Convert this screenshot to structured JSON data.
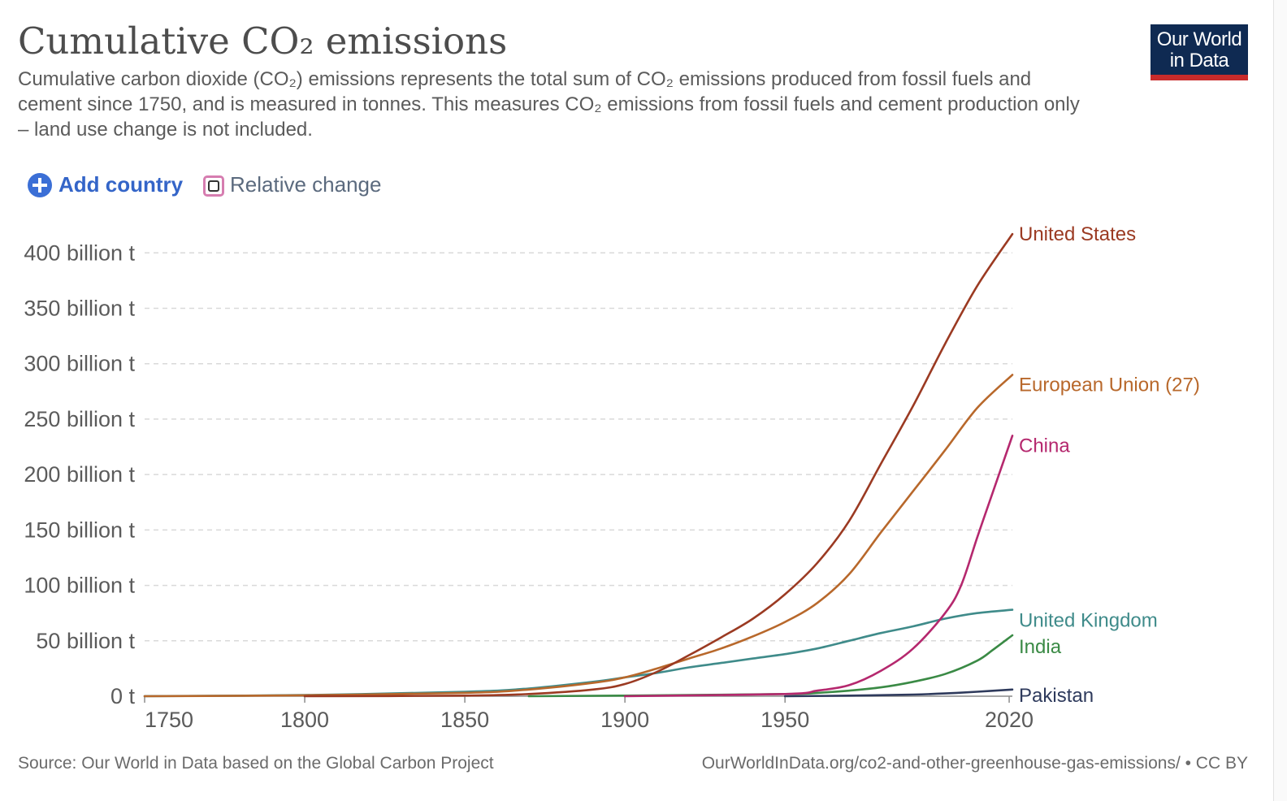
{
  "header": {
    "title": "Cumulative CO₂ emissions",
    "subtitle": "Cumulative carbon dioxide (CO₂) emissions represents the total sum of CO₂ emissions produced from fossil fuels and cement since 1750, and is measured in tonnes. This measures CO₂ emissions from fossil fuels and cement production only – land use change is not included.",
    "logo_line1": "Our World",
    "logo_line2": "in Data"
  },
  "controls": {
    "add_country_label": "Add country",
    "relative_change_label": "Relative change"
  },
  "footer": {
    "source": "Source: Our World in Data based on the Global Carbon Project",
    "url": "OurWorldInData.org/co2-and-other-greenhouse-gas-emissions/ • CC BY"
  },
  "chart_data": {
    "type": "line",
    "title": "Cumulative CO₂ emissions",
    "xlabel": "",
    "ylabel": "",
    "xlim": [
      1750,
      2021
    ],
    "ylim": [
      0,
      420
    ],
    "x_ticks": [
      1750,
      1800,
      1850,
      1900,
      1950,
      2020
    ],
    "x_tick_labels": [
      "1750",
      "1800",
      "1850",
      "1900",
      "1950",
      "2020"
    ],
    "y_ticks": [
      0,
      50,
      100,
      150,
      200,
      250,
      300,
      350,
      400
    ],
    "y_tick_labels": [
      "0 t",
      "50 billion t",
      "100 billion t",
      "150 billion t",
      "200 billion t",
      "250 billion t",
      "300 billion t",
      "350 billion t",
      "400 billion t"
    ],
    "grid": true,
    "legend": "right (end labels)",
    "series": [
      {
        "name": "United States",
        "color": "#9b3a22",
        "x": [
          1800,
          1850,
          1870,
          1890,
          1900,
          1910,
          1920,
          1930,
          1940,
          1950,
          1960,
          1970,
          1980,
          1990,
          2000,
          2010,
          2021
        ],
        "y": [
          0,
          0.5,
          2,
          6,
          11,
          22,
          37,
          53,
          70,
          92,
          120,
          158,
          210,
          262,
          318,
          370,
          417
        ]
      },
      {
        "name": "European Union (27)",
        "color": "#b8682b",
        "x": [
          1750,
          1800,
          1850,
          1870,
          1890,
          1900,
          1910,
          1920,
          1930,
          1940,
          1950,
          1960,
          1970,
          1980,
          1990,
          2000,
          2010,
          2021
        ],
        "y": [
          0,
          0.8,
          3,
          6,
          12,
          17,
          25,
          34,
          43,
          54,
          67,
          84,
          110,
          148,
          185,
          222,
          260,
          290
        ]
      },
      {
        "name": "China",
        "color": "#b5286e",
        "x": [
          1900,
          1950,
          1960,
          1970,
          1980,
          1990,
          2000,
          2005,
          2010,
          2015,
          2021
        ],
        "y": [
          0,
          2,
          5,
          10,
          23,
          43,
          75,
          100,
          143,
          185,
          235
        ]
      },
      {
        "name": "United Kingdom",
        "color": "#3f8b8a",
        "x": [
          1750,
          1800,
          1850,
          1870,
          1890,
          1900,
          1910,
          1920,
          1930,
          1940,
          1950,
          1960,
          1970,
          1980,
          1990,
          2000,
          2010,
          2021
        ],
        "y": [
          0.1,
          1,
          4,
          7,
          13,
          17,
          21,
          26,
          30,
          34,
          38,
          43,
          50,
          57,
          63,
          70,
          75,
          78
        ]
      },
      {
        "name": "India",
        "color": "#3a8a45",
        "x": [
          1870,
          1900,
          1950,
          1960,
          1970,
          1980,
          1990,
          2000,
          2010,
          2015,
          2021
        ],
        "y": [
          0,
          0.5,
          2,
          3,
          5,
          8,
          13,
          20,
          32,
          42,
          55
        ]
      },
      {
        "name": "Pakistan",
        "color": "#2e3a5c",
        "x": [
          1950,
          1970,
          1990,
          2000,
          2010,
          2021
        ],
        "y": [
          0,
          0.5,
          1.5,
          2.5,
          4,
          6
        ]
      }
    ]
  }
}
